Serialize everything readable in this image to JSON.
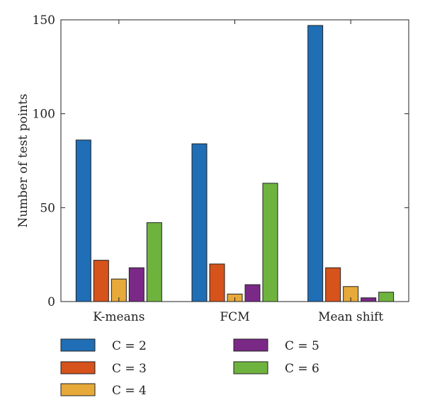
{
  "chart_data": {
    "type": "bar",
    "categories": [
      "K-means",
      "FCM",
      "Mean shift"
    ],
    "series": [
      {
        "name": "C = 2",
        "color": "#1f6eb6",
        "values": [
          86,
          84,
          147
        ]
      },
      {
        "name": "C = 3",
        "color": "#d6531c",
        "values": [
          22,
          20,
          18
        ]
      },
      {
        "name": "C = 4",
        "color": "#e6a93a",
        "values": [
          12,
          4,
          8
        ]
      },
      {
        "name": "C = 5",
        "color": "#7a2a86",
        "values": [
          18,
          9,
          2
        ]
      },
      {
        "name": "C = 6",
        "color": "#6fb33f",
        "values": [
          42,
          63,
          5
        ]
      }
    ],
    "ylabel": "Number of test points",
    "xlabel": "",
    "ylim": [
      0,
      150
    ],
    "yticks": [
      0,
      50,
      100,
      150
    ],
    "grid": false,
    "legend_position": "bottom"
  }
}
